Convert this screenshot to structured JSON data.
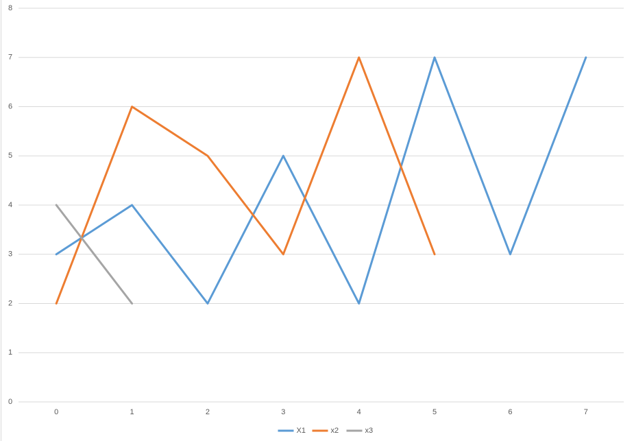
{
  "chart_data": {
    "type": "line",
    "categories": [
      "0",
      "1",
      "2",
      "3",
      "4",
      "5",
      "6",
      "7"
    ],
    "series": [
      {
        "name": "X1",
        "color": "#5b9bd5",
        "values": [
          3,
          4,
          2,
          5,
          2,
          7,
          3,
          7
        ]
      },
      {
        "name": "x2",
        "color": "#ed7d31",
        "values": [
          2,
          6,
          5,
          3,
          7,
          3,
          null,
          null
        ]
      },
      {
        "name": "x3",
        "color": "#a5a5a5",
        "values": [
          4,
          2,
          null,
          null,
          null,
          null,
          null,
          null
        ]
      }
    ],
    "ylim": [
      0,
      8
    ],
    "yticks": [
      0,
      1,
      2,
      3,
      4,
      5,
      6,
      7,
      8
    ],
    "grid": true,
    "legend": "bottom"
  }
}
